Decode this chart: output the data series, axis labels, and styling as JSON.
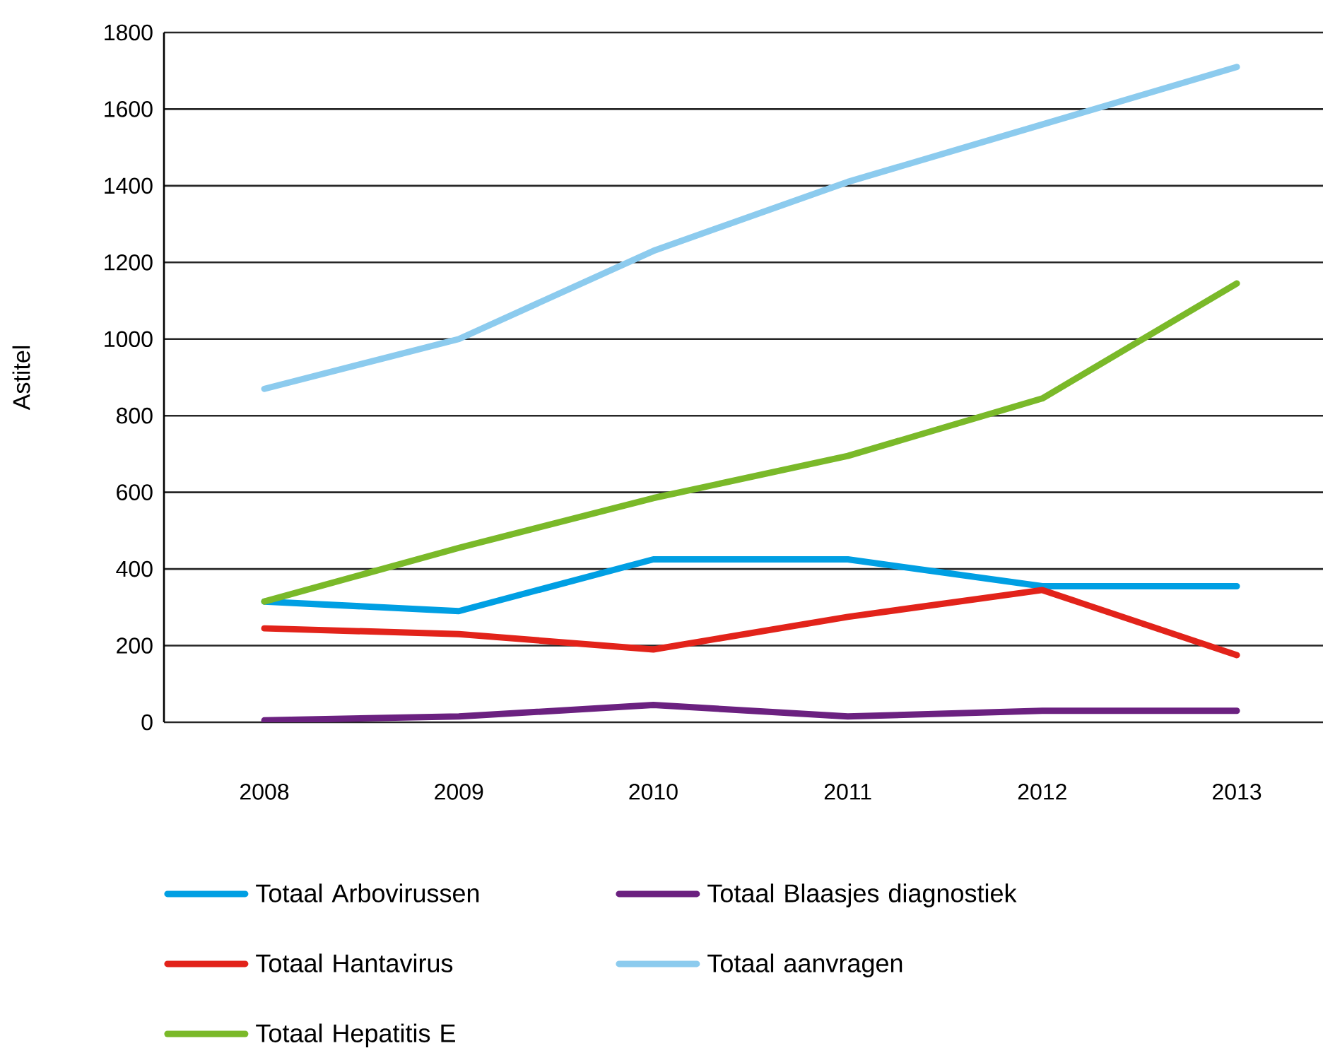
{
  "chart_data": {
    "type": "line",
    "ylabel": "Astitel",
    "categories": [
      "2008",
      "2009",
      "2010",
      "2011",
      "2012",
      "2013"
    ],
    "ylim": [
      0,
      1800
    ],
    "yticks": [
      0,
      200,
      400,
      600,
      800,
      1000,
      1200,
      1400,
      1600,
      1800
    ],
    "grid": "y",
    "legend": "bottom",
    "series": [
      {
        "name": "Totaal Arbovirussen",
        "color": "#009fe3",
        "values": [
          315,
          290,
          425,
          425,
          355,
          355
        ]
      },
      {
        "name": "Totaal Hantavirus",
        "color": "#e2231a",
        "values": [
          245,
          230,
          190,
          275,
          345,
          175
        ]
      },
      {
        "name": "Totaal Hepatitis E",
        "color": "#7ab929",
        "values": [
          315,
          455,
          585,
          695,
          845,
          1145
        ]
      },
      {
        "name": "Totaal Blaasjes diagnostiek",
        "color": "#6b2180",
        "values": [
          5,
          15,
          45,
          15,
          30,
          30
        ]
      },
      {
        "name": "Totaal aanvragen",
        "color": "#8ccbee",
        "values": [
          870,
          1000,
          1230,
          1410,
          1560,
          1710
        ]
      }
    ]
  }
}
